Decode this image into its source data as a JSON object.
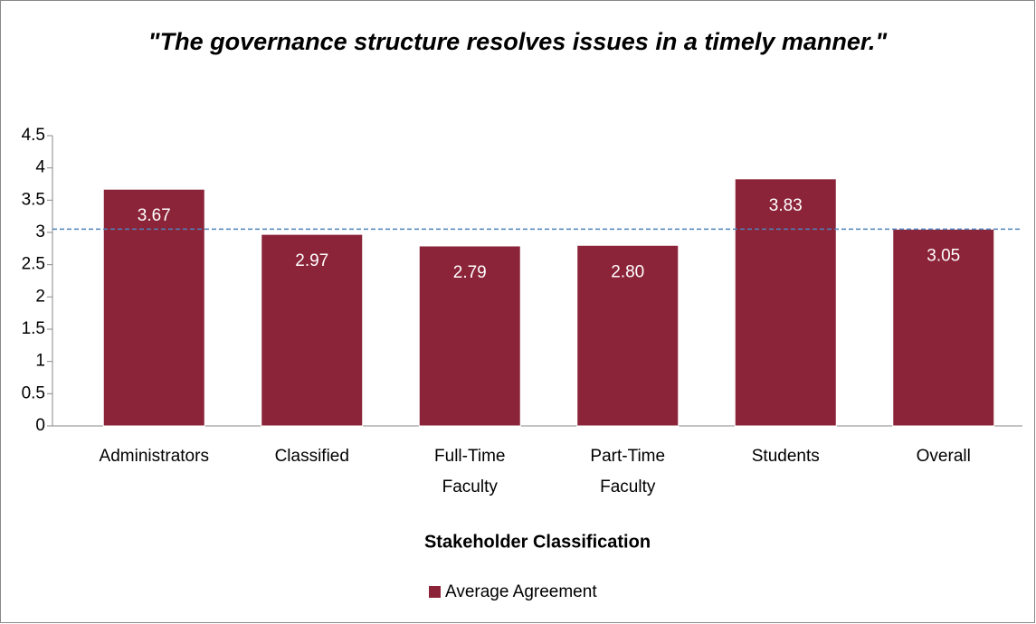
{
  "chart_data": {
    "type": "bar",
    "title": "\"The governance structure resolves issues in a timely manner.\"",
    "categories": [
      "Administrators",
      "Classified",
      "Full-Time Faculty",
      "Part-Time Faculty",
      "Students",
      "Overall"
    ],
    "series": [
      {
        "name": "Average Agreement",
        "color": "#8b2439",
        "values": [
          3.67,
          2.97,
          2.79,
          2.8,
          3.83,
          3.05
        ],
        "value_labels": [
          "3.67",
          "2.97",
          "2.79",
          "2.80",
          "3.83",
          "3.05"
        ]
      }
    ],
    "reference_line": 3.05,
    "xlabel": "Stakeholder Classification",
    "ylim": [
      0,
      4.5
    ],
    "yticks": [
      0,
      0.5,
      1,
      1.5,
      2,
      2.5,
      3,
      3.5,
      4,
      4.5
    ],
    "legend": "bottom"
  }
}
